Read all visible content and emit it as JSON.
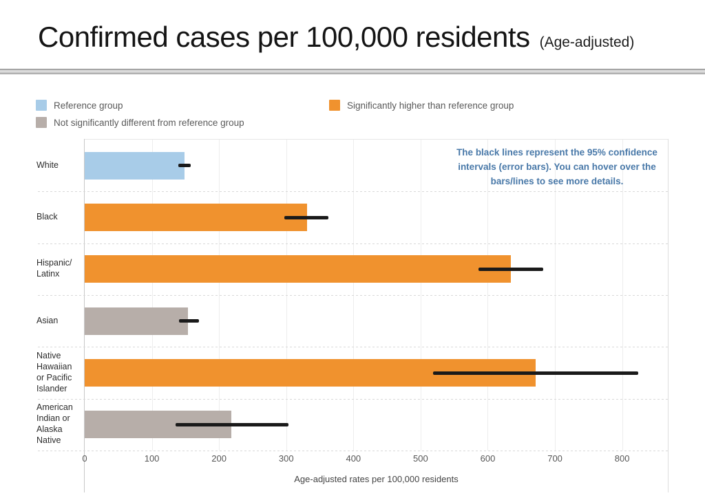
{
  "title": {
    "main": "Confirmed cases per 100,000 residents",
    "suffix": "(Age-adjusted)"
  },
  "legend": {
    "items": [
      {
        "id": "reference",
        "label": "Reference group",
        "color": "#A8CCE8"
      },
      {
        "id": "not-significant",
        "label": "Not significantly different from reference group",
        "color": "#B7AEA9"
      },
      {
        "id": "higher",
        "label": "Significantly higher than reference group",
        "color": "#F0922E"
      }
    ]
  },
  "annotation": {
    "text": "The black lines represent the 95% confidence\nintervals (error bars). You can hover over the\nbars/lines to see more details.",
    "color": "#4878A8"
  },
  "chart_data": {
    "type": "bar",
    "orientation": "horizontal",
    "title": "Confirmed cases per 100,000 residents (Age-adjusted)",
    "xlabel": "Age-adjusted rates per 100,000 residents",
    "ylabel": "",
    "xlim": [
      0,
      868
    ],
    "xticks": [
      0,
      100,
      200,
      300,
      400,
      500,
      600,
      700,
      800
    ],
    "grid": true,
    "error_bar_color": "#1A1A1A",
    "error_bar_meaning": "95% confidence interval",
    "categories": [
      "White",
      "Black",
      "Hispanic/Latinx",
      "Asian",
      "Native Hawaiian or Pacific Islander",
      "American Indian or Alaska Native"
    ],
    "rows": [
      {
        "category": "White",
        "label_display": "White",
        "value": 149,
        "ci_low": 139,
        "ci_high": 158,
        "significance": "reference",
        "color": "#A8CCE8"
      },
      {
        "category": "Black",
        "label_display": "Black",
        "value": 331,
        "ci_low": 297,
        "ci_high": 363,
        "significance": "higher",
        "color": "#F0922E"
      },
      {
        "category": "Hispanic/Latinx",
        "label_display": "Hispanic/\nLatinx",
        "value": 634,
        "ci_low": 586,
        "ci_high": 683,
        "significance": "higher",
        "color": "#F0922E"
      },
      {
        "category": "Asian",
        "label_display": "Asian",
        "value": 154,
        "ci_low": 140,
        "ci_high": 170,
        "significance": "not-significant",
        "color": "#B7AEA9"
      },
      {
        "category": "Native Hawaiian or Pacific Islander",
        "label_display": "Native\nHawaiian\nor Pacific\nIslander",
        "value": 671,
        "ci_low": 519,
        "ci_high": 824,
        "significance": "higher",
        "color": "#F0922E"
      },
      {
        "category": "American Indian or Alaska Native",
        "label_display": "American\nIndian or\nAlaska\nNative",
        "value": 218,
        "ci_low": 135,
        "ci_high": 303,
        "significance": "not-significant",
        "color": "#B7AEA9"
      }
    ]
  }
}
